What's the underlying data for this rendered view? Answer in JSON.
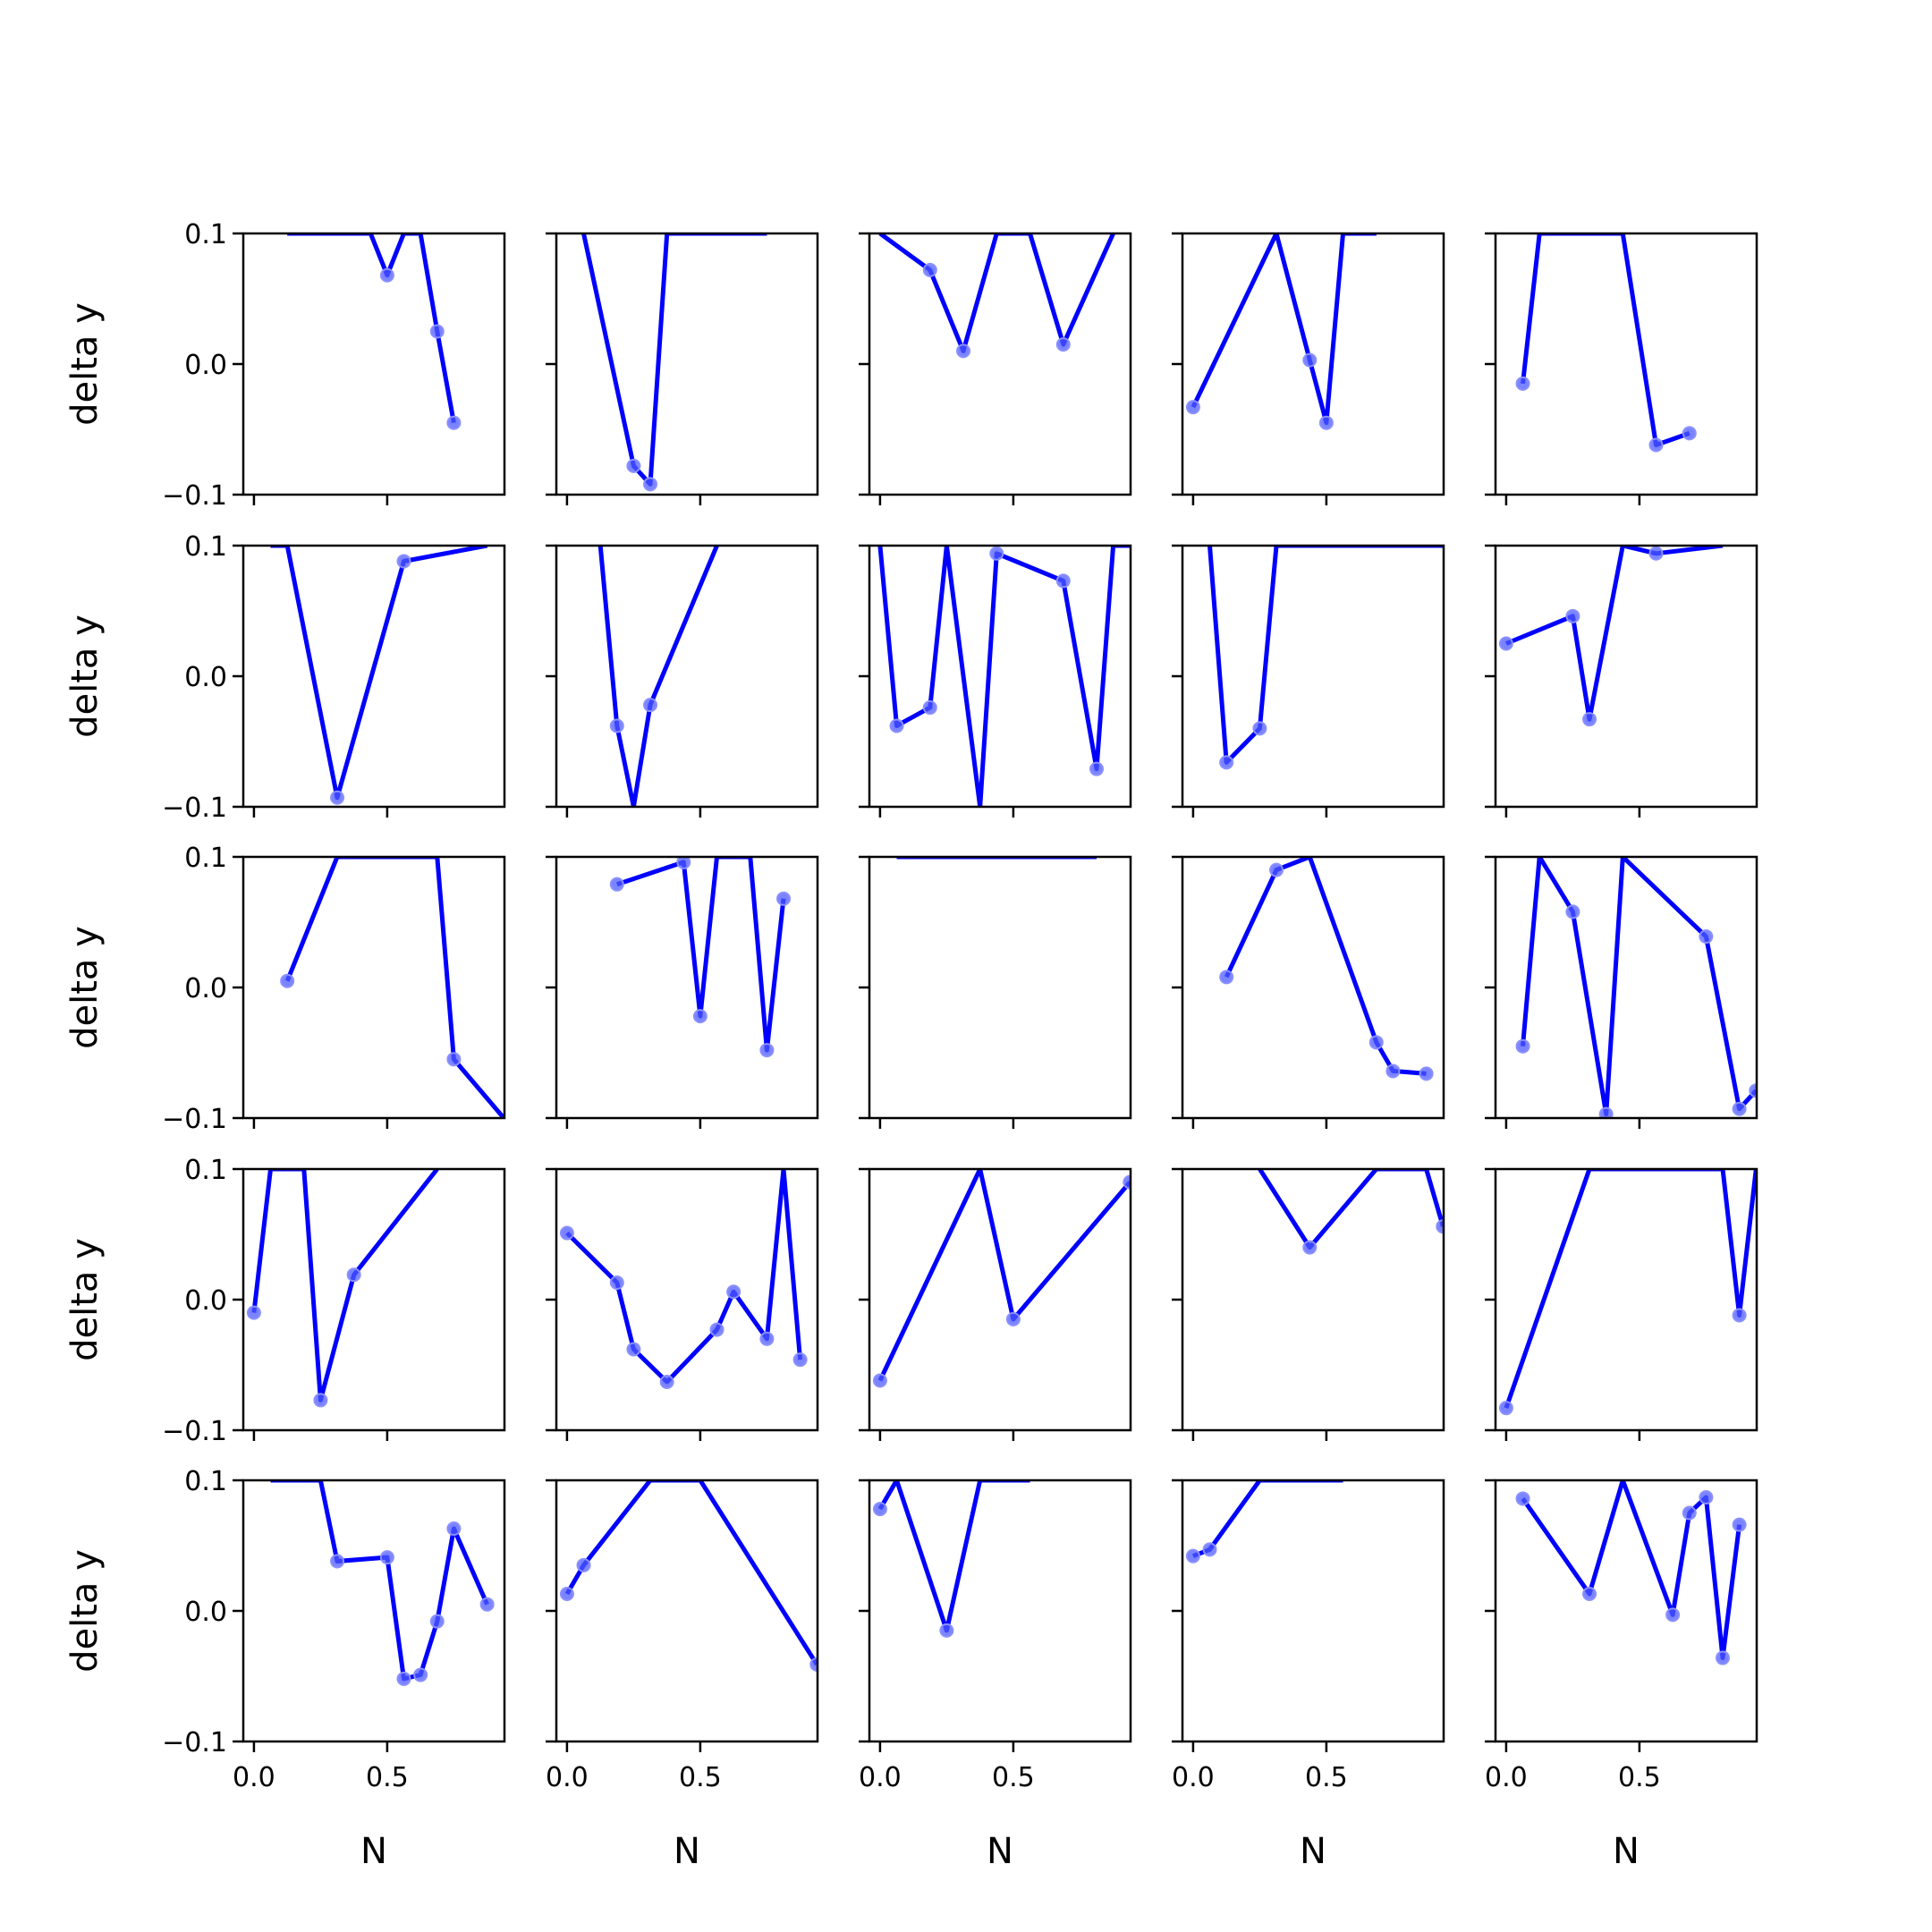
{
  "chart_data": {
    "type": "line",
    "layout": "5x5 grid of subplots",
    "xlabel": "N",
    "ylabel": "delta y",
    "ylim": [
      -0.1,
      0.1
    ],
    "xlim": [
      -0.04,
      0.94
    ],
    "x_ticks": [
      0.0,
      0.5
    ],
    "x_tick_labels": [
      "0.0",
      "0.5"
    ],
    "y_ticks": [
      -0.1,
      0.0,
      0.1
    ],
    "y_tick_labels": [
      "−0.1",
      "0.0",
      "0.1"
    ],
    "line_color": "#0000ff",
    "marker": "circle",
    "grid": false,
    "x": [
      0,
      0.0625,
      0.125,
      0.1875,
      0.25,
      0.3125,
      0.375,
      0.4375,
      0.5,
      0.5625,
      0.625,
      0.6875,
      0.75,
      0.8125,
      0.875,
      0.9375
    ],
    "panels": [
      [
        null,
        null,
        0.1,
        null,
        null,
        0.1,
        null,
        0.1,
        0.068,
        0.1,
        0.1,
        0.025,
        -0.045,
        null,
        null,
        null
      ],
      [
        null,
        0.1,
        null,
        null,
        -0.078,
        -0.092,
        0.1,
        null,
        null,
        0.1,
        0.1,
        null,
        0.1,
        null,
        null,
        null
      ],
      [
        0.1,
        null,
        null,
        0.072,
        null,
        0.01,
        null,
        0.1,
        null,
        0.1,
        null,
        0.015,
        null,
        null,
        0.1,
        null
      ],
      [
        -0.033,
        null,
        null,
        null,
        null,
        0.1,
        null,
        0.003,
        -0.045,
        0.1,
        null,
        0.1,
        null,
        null,
        null,
        null
      ],
      [
        null,
        -0.015,
        0.1,
        0.1,
        null,
        0.1,
        null,
        0.1,
        null,
        -0.062,
        null,
        -0.053,
        null,
        null,
        null,
        null
      ],
      [
        null,
        0.1,
        0.1,
        null,
        null,
        -0.093,
        null,
        null,
        null,
        0.088,
        null,
        null,
        null,
        null,
        0.1,
        null
      ],
      [
        null,
        null,
        0.1,
        -0.038,
        -0.1,
        -0.022,
        null,
        null,
        null,
        0.1,
        null,
        null,
        null,
        null,
        null,
        null
      ],
      [
        0.1,
        -0.038,
        null,
        -0.024,
        0.1,
        null,
        -0.1,
        0.094,
        null,
        null,
        null,
        0.073,
        null,
        -0.071,
        0.1,
        0.1
      ],
      [
        null,
        0.1,
        -0.066,
        null,
        -0.04,
        0.1,
        null,
        null,
        null,
        null,
        null,
        null,
        null,
        null,
        null,
        0.1
      ],
      [
        0.025,
        null,
        null,
        null,
        0.046,
        -0.033,
        null,
        0.1,
        null,
        0.094,
        null,
        null,
        null,
        0.1,
        null,
        null
      ],
      [
        null,
        null,
        0.005,
        null,
        null,
        0.1,
        null,
        0.1,
        null,
        0.1,
        null,
        0.1,
        -0.055,
        null,
        null,
        -0.1
      ],
      [
        null,
        null,
        null,
        0.079,
        null,
        null,
        null,
        0.096,
        -0.022,
        0.1,
        null,
        0.1,
        -0.048,
        0.068,
        null,
        null
      ],
      [
        null,
        0.1,
        null,
        0.1,
        null,
        0.1,
        null,
        0.1,
        null,
        null,
        0.1,
        null,
        null,
        0.1,
        null,
        null
      ],
      [
        null,
        null,
        0.008,
        null,
        null,
        0.09,
        null,
        0.1,
        null,
        null,
        null,
        -0.042,
        -0.064,
        null,
        -0.066,
        null
      ],
      [
        null,
        -0.045,
        0.1,
        null,
        0.058,
        null,
        -0.097,
        0.1,
        null,
        null,
        null,
        null,
        0.039,
        null,
        -0.093,
        -0.079
      ],
      [
        -0.01,
        0.1,
        null,
        0.1,
        -0.077,
        null,
        0.019,
        null,
        null,
        null,
        null,
        0.1,
        null,
        null,
        null,
        null
      ],
      [
        0.051,
        null,
        null,
        0.013,
        -0.038,
        null,
        -0.063,
        null,
        null,
        -0.023,
        0.006,
        null,
        -0.03,
        0.1,
        -0.046,
        null
      ],
      [
        -0.062,
        null,
        null,
        null,
        null,
        null,
        0.1,
        null,
        -0.015,
        null,
        null,
        null,
        null,
        null,
        null,
        0.09
      ],
      [
        null,
        null,
        null,
        null,
        0.1,
        null,
        null,
        0.04,
        null,
        null,
        null,
        0.1,
        null,
        null,
        0.1,
        0.056
      ],
      [
        -0.083,
        null,
        null,
        null,
        null,
        0.1,
        null,
        null,
        null,
        null,
        null,
        null,
        null,
        0.1,
        -0.012,
        0.1
      ],
      [
        null,
        0.1,
        null,
        null,
        0.1,
        0.038,
        null,
        null,
        0.041,
        -0.052,
        -0.049,
        -0.008,
        0.063,
        null,
        0.005,
        null
      ],
      [
        0.013,
        0.035,
        null,
        null,
        null,
        0.1,
        null,
        null,
        0.1,
        null,
        null,
        null,
        null,
        null,
        null,
        -0.041
      ],
      [
        0.078,
        0.1,
        null,
        null,
        -0.015,
        null,
        0.1,
        null,
        null,
        0.1,
        null,
        null,
        null,
        null,
        null,
        null
      ],
      [
        0.042,
        0.047,
        null,
        null,
        0.1,
        null,
        0.1,
        0.1,
        null,
        0.1,
        null,
        null,
        null,
        null,
        null,
        null
      ],
      [
        null,
        0.086,
        null,
        null,
        null,
        0.013,
        null,
        0.1,
        null,
        null,
        -0.003,
        0.075,
        0.087,
        -0.036,
        0.066,
        null
      ]
    ]
  }
}
